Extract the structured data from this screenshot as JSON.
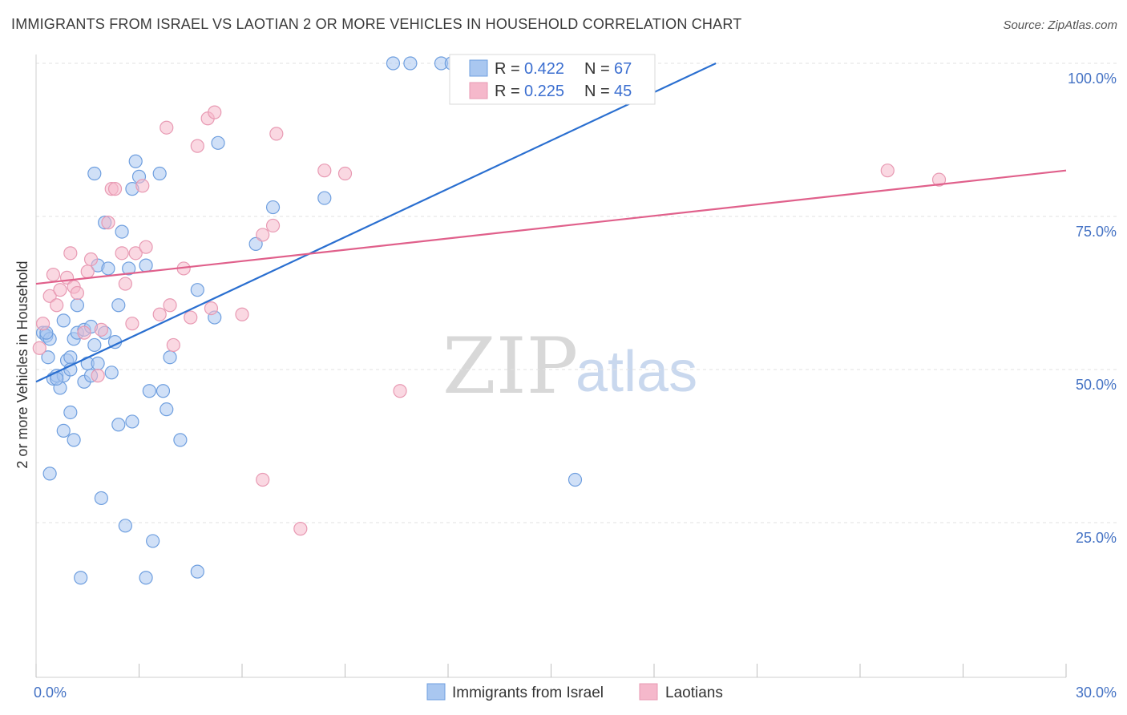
{
  "header": {
    "title": "IMMIGRANTS FROM ISRAEL VS LAOTIAN 2 OR MORE VEHICLES IN HOUSEHOLD CORRELATION CHART",
    "source": "Source: ZipAtlas.com"
  },
  "watermark": {
    "zip": "ZIP",
    "atlas": "atlas"
  },
  "legend": {
    "rows": [
      {
        "r_label": "R = ",
        "r_value": "0.422",
        "n_label": "N = ",
        "n_value": "67",
        "color": "#a9c7f0"
      },
      {
        "r_label": "R = ",
        "r_value": "0.225",
        "n_label": "N = ",
        "n_value": "45",
        "color": "#f5b8cb"
      }
    ]
  },
  "bottom_legend": [
    {
      "label": "Immigrants from Israel",
      "color": "#a9c7f0"
    },
    {
      "label": "Laotians",
      "color": "#f5b8cb"
    }
  ],
  "chart_data": {
    "type": "scatter",
    "ylabel": "2 or more Vehicles in Household",
    "xlim": [
      0,
      30
    ],
    "ylim": [
      0,
      100
    ],
    "x_tick_labels": [
      "0.0%",
      "30.0%"
    ],
    "y_ticks": [
      25,
      50,
      75,
      100
    ],
    "y_tick_labels": [
      "25.0%",
      "50.0%",
      "75.0%",
      "100.0%"
    ],
    "grid": "horizontal dashed",
    "series": [
      {
        "name": "Immigrants from Israel",
        "color": "#6f9fdf",
        "fill": "#a9c7f0",
        "trend": {
          "x": [
            0,
            19.8
          ],
          "y": [
            48.0,
            100.0
          ],
          "color": "#2a6fd0"
        },
        "points": [
          [
            0.2,
            56.0
          ],
          [
            0.3,
            55.5
          ],
          [
            0.4,
            33.0
          ],
          [
            0.35,
            52.0
          ],
          [
            0.4,
            55.0
          ],
          [
            0.5,
            48.5
          ],
          [
            0.6,
            49.0
          ],
          [
            0.7,
            47.0
          ],
          [
            0.8,
            40.0
          ],
          [
            0.8,
            49.0
          ],
          [
            0.9,
            51.5
          ],
          [
            0.8,
            58.0
          ],
          [
            1.0,
            52.0
          ],
          [
            1.0,
            50.0
          ],
          [
            1.0,
            43.0
          ],
          [
            1.1,
            55.0
          ],
          [
            1.1,
            38.5
          ],
          [
            1.2,
            60.5
          ],
          [
            1.2,
            56.0
          ],
          [
            1.3,
            16.0
          ],
          [
            1.4,
            56.5
          ],
          [
            1.4,
            48.0
          ],
          [
            1.5,
            51.0
          ],
          [
            1.6,
            49.0
          ],
          [
            1.6,
            57.0
          ],
          [
            1.7,
            54.0
          ],
          [
            1.7,
            82.0
          ],
          [
            1.8,
            67.0
          ],
          [
            1.8,
            51.0
          ],
          [
            1.9,
            29.0
          ],
          [
            2.0,
            74.0
          ],
          [
            2.0,
            56.0
          ],
          [
            2.1,
            66.5
          ],
          [
            2.2,
            49.5
          ],
          [
            2.3,
            54.5
          ],
          [
            2.4,
            41.0
          ],
          [
            2.4,
            60.5
          ],
          [
            2.5,
            72.5
          ],
          [
            2.6,
            24.5
          ],
          [
            2.7,
            66.5
          ],
          [
            2.8,
            79.5
          ],
          [
            2.8,
            41.5
          ],
          [
            2.9,
            84.0
          ],
          [
            3.0,
            81.5
          ],
          [
            3.2,
            67.0
          ],
          [
            3.2,
            16.0
          ],
          [
            3.3,
            46.5
          ],
          [
            3.4,
            22.0
          ],
          [
            3.6,
            82.0
          ],
          [
            3.7,
            46.5
          ],
          [
            3.8,
            43.5
          ],
          [
            3.9,
            52.0
          ],
          [
            4.2,
            38.5
          ],
          [
            4.7,
            17.0
          ],
          [
            4.7,
            63.0
          ],
          [
            5.2,
            58.5
          ],
          [
            5.3,
            87.0
          ],
          [
            6.4,
            70.5
          ],
          [
            6.9,
            76.5
          ],
          [
            8.4,
            78.0
          ],
          [
            10.4,
            100.0
          ],
          [
            10.9,
            100.0
          ],
          [
            11.8,
            100.0
          ],
          [
            12.1,
            100.0
          ],
          [
            15.7,
            32.0
          ],
          [
            0.3,
            56.0
          ],
          [
            0.6,
            48.5
          ]
        ]
      },
      {
        "name": "Laotians",
        "color": "#e89ab3",
        "fill": "#f5b8cb",
        "trend": {
          "x": [
            0,
            30
          ],
          "y": [
            64.0,
            82.5
          ],
          "color": "#e0608b"
        },
        "points": [
          [
            0.1,
            53.5
          ],
          [
            0.2,
            57.5
          ],
          [
            0.4,
            62.0
          ],
          [
            0.5,
            65.5
          ],
          [
            0.6,
            60.5
          ],
          [
            0.7,
            63.0
          ],
          [
            0.9,
            65.0
          ],
          [
            1.0,
            69.0
          ],
          [
            1.1,
            63.5
          ],
          [
            1.2,
            62.5
          ],
          [
            1.4,
            56.0
          ],
          [
            1.5,
            66.0
          ],
          [
            1.6,
            68.0
          ],
          [
            1.8,
            49.0
          ],
          [
            1.9,
            56.5
          ],
          [
            2.1,
            74.0
          ],
          [
            2.2,
            79.5
          ],
          [
            2.3,
            79.5
          ],
          [
            2.5,
            69.0
          ],
          [
            2.6,
            64.0
          ],
          [
            2.8,
            57.5
          ],
          [
            2.9,
            69.0
          ],
          [
            3.1,
            80.0
          ],
          [
            3.2,
            70.0
          ],
          [
            3.6,
            59.0
          ],
          [
            3.8,
            89.5
          ],
          [
            3.9,
            60.5
          ],
          [
            4.0,
            54.0
          ],
          [
            4.3,
            66.5
          ],
          [
            4.5,
            58.5
          ],
          [
            4.7,
            86.5
          ],
          [
            5.0,
            91.0
          ],
          [
            5.1,
            60.0
          ],
          [
            5.2,
            92.0
          ],
          [
            6.0,
            59.0
          ],
          [
            6.6,
            32.0
          ],
          [
            6.6,
            72.0
          ],
          [
            6.9,
            73.5
          ],
          [
            7.0,
            88.5
          ],
          [
            7.7,
            24.0
          ],
          [
            8.4,
            82.5
          ],
          [
            9.0,
            82.0
          ],
          [
            10.6,
            46.5
          ],
          [
            24.8,
            82.5
          ],
          [
            26.3,
            81.0
          ]
        ]
      }
    ]
  }
}
